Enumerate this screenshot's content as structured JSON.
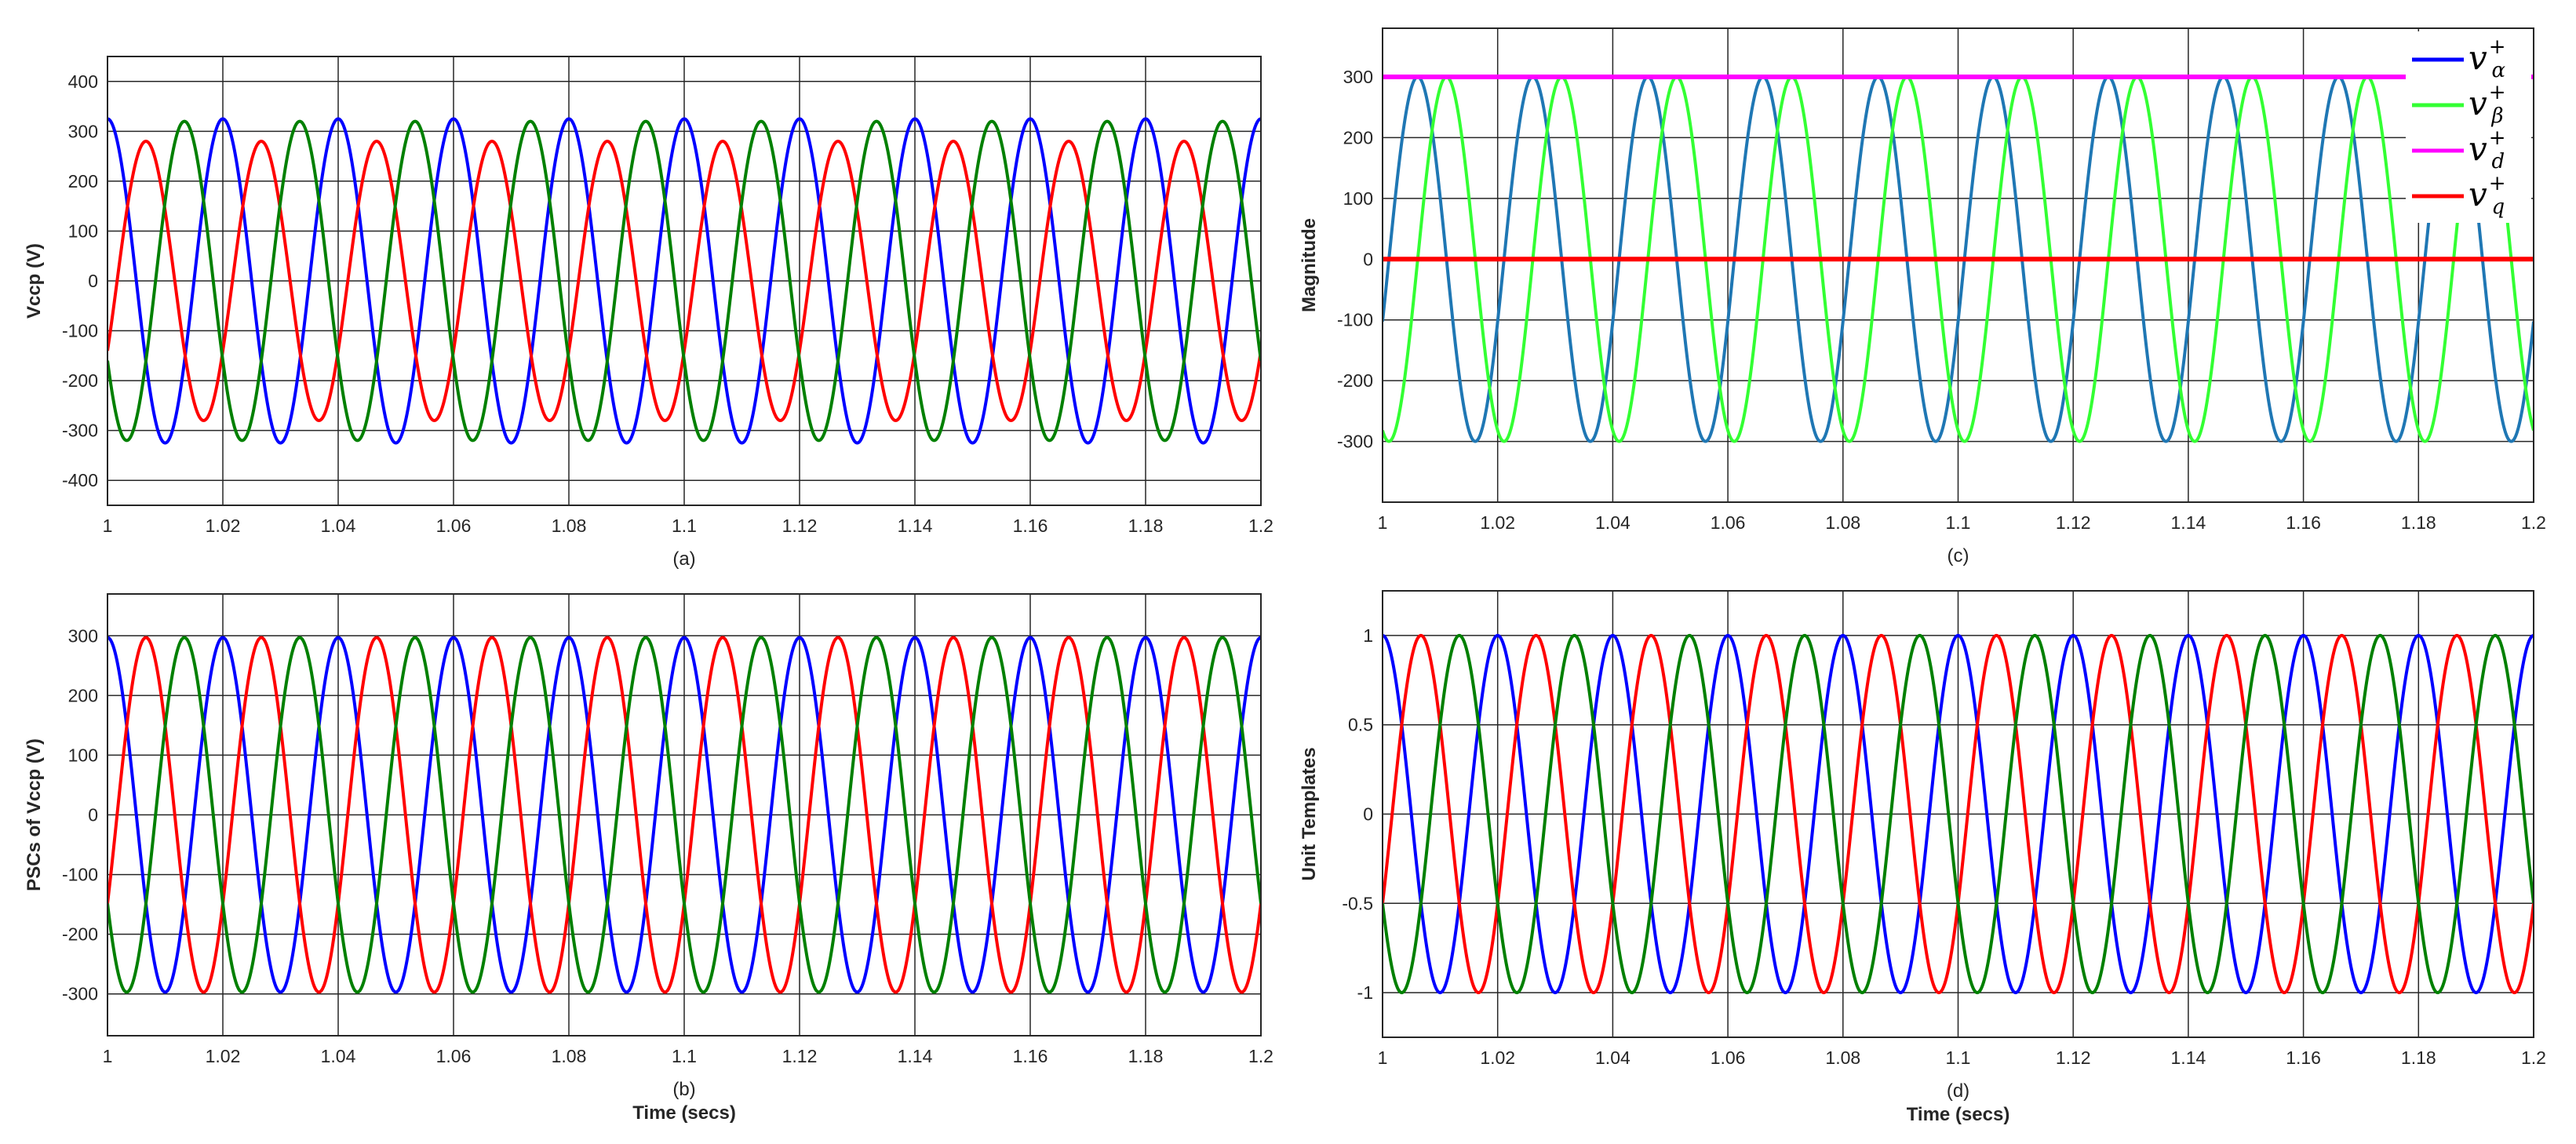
{
  "chart_data": [
    {
      "id": "a",
      "type": "line",
      "caption": "(a)",
      "xlabel": "",
      "ylabel": "Vccp (V)",
      "xlim": [
        1,
        1.2
      ],
      "ylim": [
        -450,
        450
      ],
      "xticks": [
        1,
        1.02,
        1.04,
        1.06,
        1.08,
        1.1,
        1.12,
        1.14,
        1.16,
        1.18,
        1.2
      ],
      "xtick_labels": [
        "1",
        "1.02",
        "1.04",
        "1.06",
        "1.08",
        "1.1",
        "1.12",
        "1.14",
        "1.16",
        "1.18",
        "1.2"
      ],
      "yticks": [
        -400,
        -300,
        -200,
        -100,
        0,
        100,
        200,
        300,
        400
      ],
      "ytick_labels": [
        "-400",
        "-300",
        "-200",
        "-100",
        "0",
        "100",
        "200",
        "300",
        "400"
      ],
      "grid": true,
      "frequency_hz": 50,
      "series": [
        {
          "color": "#0000ff",
          "amplitude": 325,
          "phase_deg": 90
        },
        {
          "color": "#ff0000",
          "amplitude": 280,
          "phase_deg": -30
        },
        {
          "color": "#008000",
          "amplitude": 320,
          "phase_deg": 210
        }
      ]
    },
    {
      "id": "b",
      "type": "line",
      "caption": "(b)",
      "xlabel": "Time (secs)",
      "ylabel": "PSCs of Vccp (V)",
      "xlim": [
        1,
        1.2
      ],
      "ylim": [
        -370,
        370
      ],
      "xticks": [
        1,
        1.02,
        1.04,
        1.06,
        1.08,
        1.1,
        1.12,
        1.14,
        1.16,
        1.18,
        1.2
      ],
      "xtick_labels": [
        "1",
        "1.02",
        "1.04",
        "1.06",
        "1.08",
        "1.1",
        "1.12",
        "1.14",
        "1.16",
        "1.18",
        "1.2"
      ],
      "yticks": [
        -300,
        -200,
        -100,
        0,
        100,
        200,
        300
      ],
      "ytick_labels": [
        "-300",
        "-200",
        "-100",
        "0",
        "100",
        "200",
        "300"
      ],
      "grid": true,
      "frequency_hz": 50,
      "series": [
        {
          "color": "#0000ff",
          "amplitude": 297,
          "phase_deg": 90
        },
        {
          "color": "#ff0000",
          "amplitude": 297,
          "phase_deg": -30
        },
        {
          "color": "#008000",
          "amplitude": 297,
          "phase_deg": 210
        }
      ]
    },
    {
      "id": "c",
      "type": "line",
      "caption": "(c)",
      "xlabel": "",
      "ylabel": "Magnitude",
      "xlim": [
        1,
        1.2
      ],
      "ylim": [
        -400,
        380
      ],
      "xticks": [
        1,
        1.02,
        1.04,
        1.06,
        1.08,
        1.1,
        1.12,
        1.14,
        1.16,
        1.18,
        1.2
      ],
      "xtick_labels": [
        "1",
        "1.02",
        "1.04",
        "1.06",
        "1.08",
        "1.1",
        "1.12",
        "1.14",
        "1.16",
        "1.18",
        "1.2"
      ],
      "yticks": [
        -300,
        -200,
        -100,
        0,
        100,
        200,
        300
      ],
      "ytick_labels": [
        "-300",
        "-200",
        "-100",
        "0",
        "100",
        "200",
        "300"
      ],
      "grid": true,
      "frequency_hz": 50,
      "legend_position": "top-right",
      "series": [
        {
          "name": "v",
          "sub": "α",
          "sup": "+",
          "color": "#1f77b4",
          "legend_color": "#0000ff",
          "kind": "sine",
          "amplitude": 300,
          "phase_deg": -20
        },
        {
          "name": "v",
          "sub": "β",
          "sup": "+",
          "color": "#33ff33",
          "legend_color": "#33ff33",
          "kind": "sine",
          "amplitude": 300,
          "phase_deg": -110
        },
        {
          "name": "v",
          "sub": "d",
          "sup": "+",
          "color": "#ff00ff",
          "legend_color": "#ff00ff",
          "kind": "const",
          "value": 300
        },
        {
          "name": "v",
          "sub": "q",
          "sup": "+",
          "color": "#ff0000",
          "legend_color": "#ff0000",
          "kind": "const",
          "value": 0
        }
      ]
    },
    {
      "id": "d",
      "type": "line",
      "caption": "(d)",
      "xlabel": "Time (secs)",
      "ylabel": "Unit Templates",
      "xlim": [
        1,
        1.2
      ],
      "ylim": [
        -1.25,
        1.25
      ],
      "xticks": [
        1,
        1.02,
        1.04,
        1.06,
        1.08,
        1.1,
        1.12,
        1.14,
        1.16,
        1.18,
        1.2
      ],
      "xtick_labels": [
        "1",
        "1.02",
        "1.04",
        "1.06",
        "1.08",
        "1.1",
        "1.12",
        "1.14",
        "1.16",
        "1.18",
        "1.2"
      ],
      "yticks": [
        -1,
        -0.5,
        0,
        0.5,
        1
      ],
      "ytick_labels": [
        "-1",
        "-0.5",
        "0",
        "0.5",
        "1"
      ],
      "grid": true,
      "frequency_hz": 50,
      "series": [
        {
          "color": "#0000ff",
          "amplitude": 1,
          "phase_deg": 90
        },
        {
          "color": "#ff0000",
          "amplitude": 1,
          "phase_deg": -30
        },
        {
          "color": "#008000",
          "amplitude": 1,
          "phase_deg": 210
        }
      ]
    }
  ]
}
